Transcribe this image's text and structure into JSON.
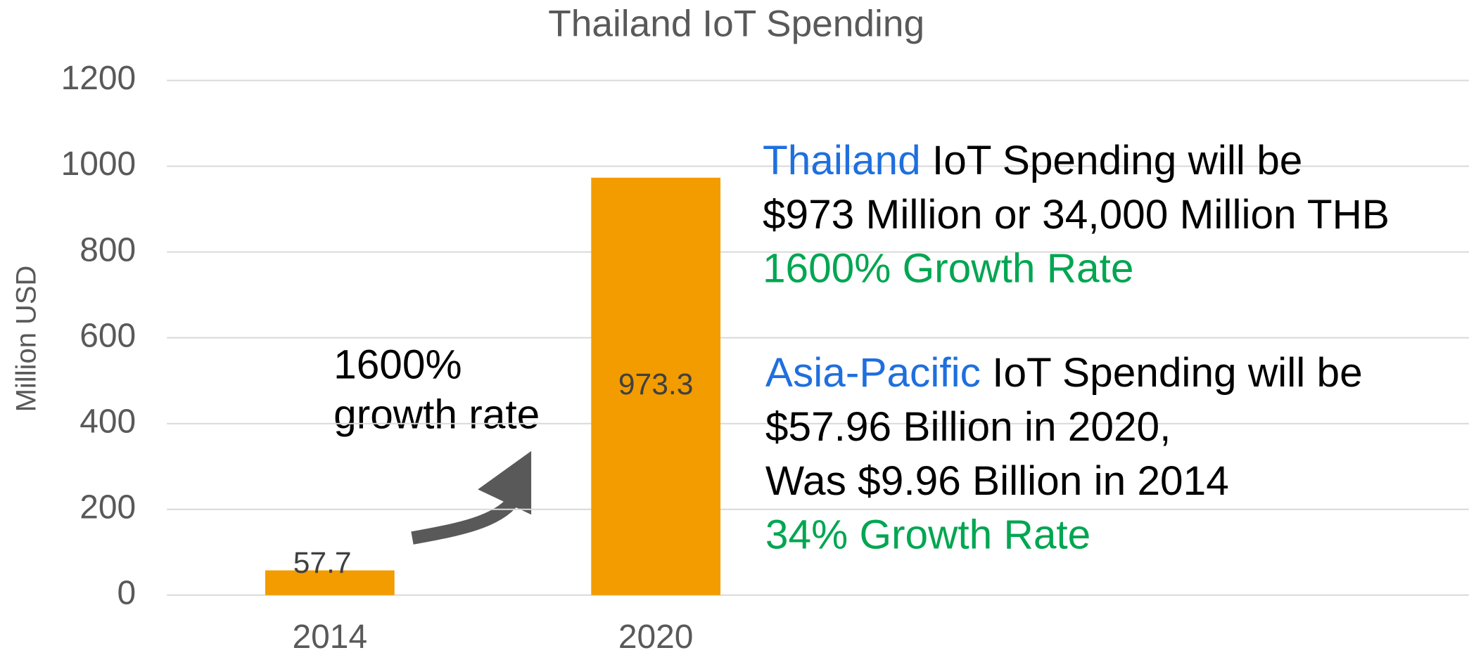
{
  "chart_data": {
    "type": "bar",
    "title": "Thailand IoT Spending",
    "y_label": "Million USD",
    "categories": [
      "2014",
      "2020"
    ],
    "values": [
      57.7,
      973.3
    ],
    "color": "#f29c00",
    "ylim": [
      0,
      1200
    ],
    "yticks": [
      0,
      200,
      400,
      600,
      800,
      1000,
      1200
    ],
    "grid": true,
    "arrow_label": [
      "1600%",
      "growth rate"
    ],
    "annotations": [
      [
        [
          {
            "text": "Thailand",
            "color": "#1f6fde"
          },
          {
            "text": " IoT Spending will be",
            "color": "#000000"
          }
        ],
        [
          {
            "text": "$973 Million or 34,000 Million THB",
            "color": "#000000"
          }
        ],
        [
          {
            "text": "1600% Growth Rate",
            "color": "#00a651"
          }
        ]
      ],
      [
        [
          {
            "text": "Asia-Pacific",
            "color": "#1f6fde"
          },
          {
            "text": " IoT Spending will be",
            "color": "#000000"
          }
        ],
        [
          {
            "text": "$57.96 Billion in 2020,",
            "color": "#000000"
          }
        ],
        [
          {
            "text": "Was $9.96 Billion in 2014",
            "color": "#000000"
          }
        ],
        [
          {
            "text": "34% Growth Rate",
            "color": "#00a651"
          }
        ]
      ]
    ]
  }
}
